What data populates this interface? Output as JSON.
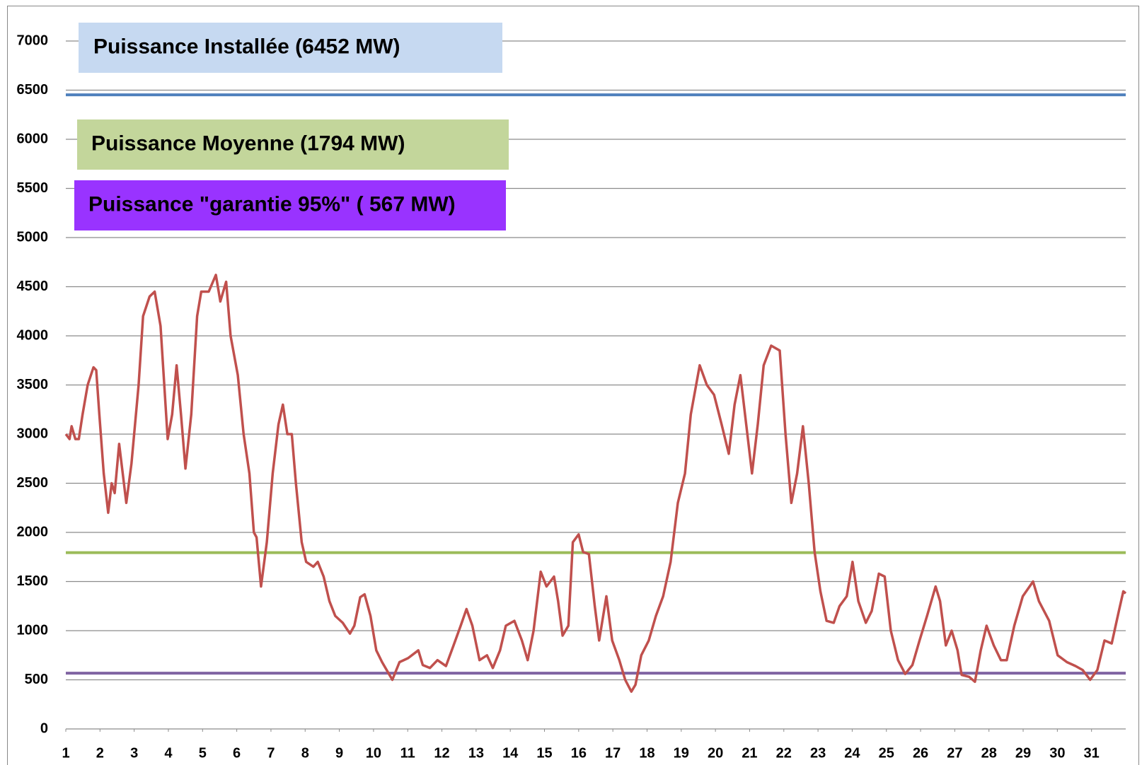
{
  "chart_data": {
    "type": "line",
    "x": [
      1.0,
      1.11,
      1.17,
      1.28,
      1.38,
      1.49,
      1.64,
      1.81,
      1.89,
      1.98,
      2.11,
      2.24,
      2.34,
      2.43,
      2.56,
      2.77,
      2.92,
      3.13,
      3.26,
      3.45,
      3.6,
      3.77,
      3.98,
      4.11,
      4.24,
      4.37,
      4.5,
      4.67,
      4.84,
      4.96,
      5.18,
      5.39,
      5.52,
      5.69,
      5.82,
      6.03,
      6.2,
      6.37,
      6.5,
      6.58,
      6.71,
      6.88,
      7.05,
      7.22,
      7.35,
      7.48,
      7.61,
      7.73,
      7.9,
      8.03,
      8.24,
      8.37,
      8.54,
      8.71,
      8.88,
      9.1,
      9.31,
      9.44,
      9.61,
      9.74,
      9.91,
      10.08,
      10.25,
      10.55,
      10.76,
      11.01,
      11.31,
      11.44,
      11.65,
      11.87,
      12.12,
      12.34,
      12.55,
      12.72,
      12.89,
      13.1,
      13.32,
      13.49,
      13.7,
      13.87,
      14.12,
      14.34,
      14.51,
      14.68,
      14.89,
      15.06,
      15.28,
      15.4,
      15.53,
      15.7,
      15.83,
      16.0,
      16.13,
      16.3,
      16.47,
      16.6,
      16.81,
      16.98,
      17.19,
      17.36,
      17.54,
      17.66,
      17.83,
      18.05,
      18.26,
      18.47,
      18.69,
      18.9,
      19.11,
      19.28,
      19.54,
      19.75,
      19.96,
      20.18,
      20.39,
      20.56,
      20.73,
      20.9,
      21.07,
      21.24,
      21.41,
      21.63,
      21.88,
      22.05,
      22.22,
      22.39,
      22.56,
      22.73,
      22.9,
      23.07,
      23.25,
      23.46,
      23.63,
      23.84,
      24.01,
      24.18,
      24.4,
      24.57,
      24.78,
      24.95,
      25.13,
      25.34,
      25.55,
      25.76,
      25.97,
      26.19,
      26.44,
      26.57,
      26.74,
      26.91,
      27.08,
      27.2,
      27.42,
      27.59,
      27.76,
      27.93,
      28.14,
      28.35,
      28.52,
      28.74,
      28.99,
      29.29,
      29.46,
      29.76,
      30.01,
      30.28,
      30.53,
      30.74,
      30.96,
      31.17,
      31.38,
      31.59,
      31.8,
      31.93,
      32.0
    ],
    "series": [
      {
        "color": "#c0504d",
        "values": [
          3000,
          2950,
          3080,
          2950,
          2950,
          3200,
          3500,
          3680,
          3650,
          3200,
          2600,
          2200,
          2500,
          2400,
          2900,
          2300,
          2700,
          3500,
          4200,
          4400,
          4450,
          4100,
          2950,
          3200,
          3700,
          3200,
          2650,
          3200,
          4200,
          4450,
          4450,
          4620,
          4350,
          4550,
          4000,
          3600,
          3000,
          2600,
          2000,
          1950,
          1450,
          1900,
          2600,
          3100,
          3300,
          3000,
          3000,
          2500,
          1900,
          1700,
          1650,
          1700,
          1550,
          1300,
          1150,
          1080,
          970,
          1050,
          1340,
          1370,
          1150,
          800,
          680,
          500,
          680,
          720,
          800,
          650,
          620,
          700,
          640,
          850,
          1050,
          1220,
          1050,
          700,
          750,
          620,
          800,
          1050,
          1100,
          900,
          700,
          1000,
          1600,
          1450,
          1550,
          1300,
          950,
          1050,
          1900,
          1980,
          1800,
          1780,
          1250,
          900,
          1350,
          900,
          700,
          500,
          380,
          450,
          750,
          900,
          1150,
          1350,
          1700,
          2300,
          2600,
          3200,
          3700,
          3500,
          3400,
          3100,
          2800,
          3300,
          3600,
          3100,
          2600,
          3100,
          3700,
          3900,
          3850,
          3000,
          2300,
          2600,
          3080,
          2500,
          1800,
          1400,
          1100,
          1080,
          1250,
          1350,
          1700,
          1300,
          1080,
          1200,
          1580,
          1550,
          1000,
          700,
          560,
          650,
          900,
          1150,
          1450,
          1300,
          850,
          1000,
          800,
          550,
          530,
          480,
          800,
          1050,
          850,
          700,
          700,
          1050,
          1350,
          1500,
          1300,
          1100,
          750,
          680,
          640,
          600,
          500,
          600,
          900,
          870,
          1200,
          1400,
          1380
        ]
      }
    ],
    "xlim": [
      1,
      32
    ],
    "xticks": [
      1,
      2,
      3,
      4,
      5,
      6,
      7,
      8,
      9,
      10,
      11,
      12,
      13,
      14,
      15,
      16,
      17,
      18,
      19,
      20,
      21,
      22,
      23,
      24,
      25,
      26,
      27,
      28,
      29,
      30,
      31
    ],
    "ylim": [
      0,
      7000
    ],
    "yticks": [
      0,
      500,
      1000,
      1500,
      2000,
      2500,
      3000,
      3500,
      4000,
      4500,
      5000,
      5500,
      6000,
      6500,
      7000
    ],
    "grid": true,
    "reference_lines": [
      {
        "label": "Puissance Installée (6452 MW)",
        "value": 6452,
        "color": "#4f81bd",
        "box_color": "#c6d9f1",
        "text_color": "#000000"
      },
      {
        "label": "Puissance Moyenne (1794 MW)",
        "value": 1794,
        "color": "#9bbb59",
        "box_color": "#c3d69b",
        "text_color": "#000000"
      },
      {
        "label": "Puissance \"garantie 95%\" ( 567 MW)",
        "value": 567,
        "color": "#8064a2",
        "box_color": "#9933ff",
        "text_color": "#000000"
      }
    ]
  }
}
